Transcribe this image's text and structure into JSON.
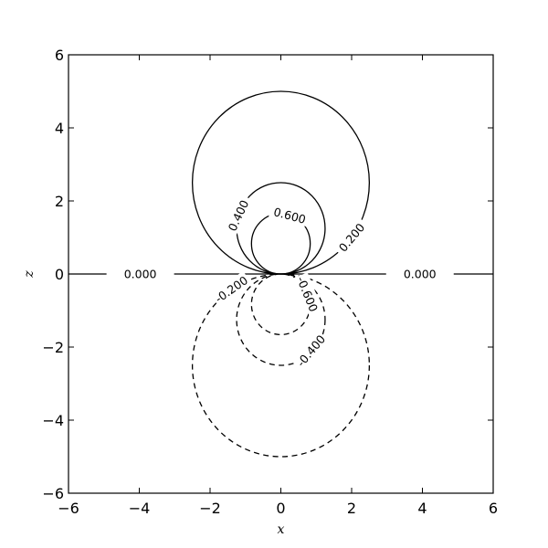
{
  "chart_data": {
    "type": "contour",
    "xlabel": "x",
    "ylabel": "z",
    "xlim": [
      -6,
      6
    ],
    "ylim": [
      -6,
      6
    ],
    "xticks": [
      -6,
      -4,
      -2,
      0,
      2,
      4,
      6
    ],
    "yticks": [
      -6,
      -4,
      -2,
      0,
      2,
      4,
      6
    ],
    "xtick_labels": [
      "−6",
      "−4",
      "−2",
      "0",
      "2",
      "4",
      "6"
    ],
    "ytick_labels": [
      "−6",
      "−4",
      "−2",
      "0",
      "2",
      "4",
      "6"
    ],
    "grid": false,
    "line_color": "#000000",
    "levels": [
      {
        "level": -0.6,
        "style": "dashed",
        "center": [
          0,
          -0.83
        ],
        "radius": 0.83,
        "label": "-0.600",
        "label_at": [
          0.75,
          -0.55
        ],
        "label_angle": 68
      },
      {
        "level": -0.4,
        "style": "dashed",
        "center": [
          0,
          -1.25
        ],
        "radius": 1.25,
        "label": "-0.400",
        "label_at": [
          0.85,
          -2.1
        ],
        "label_angle": -50
      },
      {
        "level": -0.2,
        "style": "dashed",
        "center": [
          0,
          -2.5
        ],
        "radius": 2.5,
        "label": "-0.200",
        "label_at": [
          -1.4,
          -0.42
        ],
        "label_angle": -35
      },
      {
        "level": 0.0,
        "style": "solid",
        "type": "hline",
        "y": 0,
        "label": "0.000",
        "label_positions": [
          -4.9,
          3.0
        ]
      },
      {
        "level": 0.2,
        "style": "solid",
        "center": [
          0,
          2.5
        ],
        "radius": 2.5,
        "label": "0.200",
        "label_at": [
          2.0,
          1.0
        ],
        "label_angle": -50
      },
      {
        "level": 0.4,
        "style": "solid",
        "center": [
          0,
          1.25
        ],
        "radius": 1.25,
        "label": "0.400",
        "label_at": [
          -1.2,
          1.6
        ],
        "label_angle": -65
      },
      {
        "level": 0.6,
        "style": "solid",
        "center": [
          0,
          0.83
        ],
        "radius": 0.83,
        "label": "0.600",
        "label_at": [
          0.25,
          1.6
        ],
        "label_angle": 15
      }
    ]
  }
}
